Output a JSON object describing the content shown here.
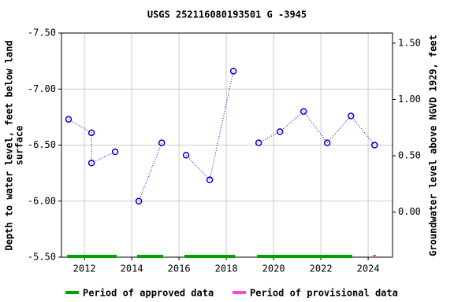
{
  "chart_data": {
    "type": "line",
    "title": "USGS 252116080193501 G  -3945",
    "y_label": [
      "Depth to water level, feet below land",
      "surface"
    ],
    "y2_label": "Groundwater level above NGVD 1929, feet",
    "xlim": [
      2011.03,
      2025.03
    ],
    "xticks": [
      2012,
      2014,
      2016,
      2018,
      2020,
      2022,
      2024
    ],
    "ylim": [
      -7.5,
      -5.5
    ],
    "y_inverted": true,
    "yticks": [
      {
        "value": -7.5,
        "label": "-7.50"
      },
      {
        "value": -7.0,
        "label": "-7.00"
      },
      {
        "value": -6.5,
        "label": "-6.50"
      },
      {
        "value": -6.0,
        "label": "-6.00"
      },
      {
        "value": -5.5,
        "label": "-5.50"
      }
    ],
    "y2lim": [
      -0.4,
      1.59
    ],
    "y2ticks": [
      {
        "value": 1.5,
        "label": "1.50"
      },
      {
        "value": 1.0,
        "label": "1.00"
      },
      {
        "value": 0.5,
        "label": "0.50"
      },
      {
        "value": 0.0,
        "label": "0.00"
      }
    ],
    "grid": true,
    "series": [
      {
        "color": "#0000cc",
        "x": [
          2011.33,
          2012.3,
          2012.3,
          2013.3,
          null,
          2014.3,
          2015.27,
          null,
          2016.3,
          2017.3,
          2018.3,
          null,
          2019.37,
          2020.27,
          2021.27,
          2022.27,
          2023.27,
          2024.27
        ],
        "values": [
          -6.73,
          -6.61,
          -6.34,
          -6.44,
          null,
          -6.0,
          -6.52,
          null,
          -6.41,
          -6.19,
          -7.16,
          null,
          -6.52,
          -6.62,
          -6.8,
          -6.52,
          -6.76,
          -6.5
        ]
      }
    ],
    "periods": [
      {
        "name": "Period of approved data",
        "color": "#00a000",
        "ranges": [
          [
            2011.27,
            2013.37
          ],
          [
            2014.23,
            2015.33
          ],
          [
            2016.23,
            2018.37
          ],
          [
            2019.3,
            2023.33
          ]
        ]
      },
      {
        "name": "Period of provisional data",
        "color": "#ff44dd",
        "ranges": [
          [
            2024.2,
            2024.33
          ]
        ]
      }
    ]
  }
}
